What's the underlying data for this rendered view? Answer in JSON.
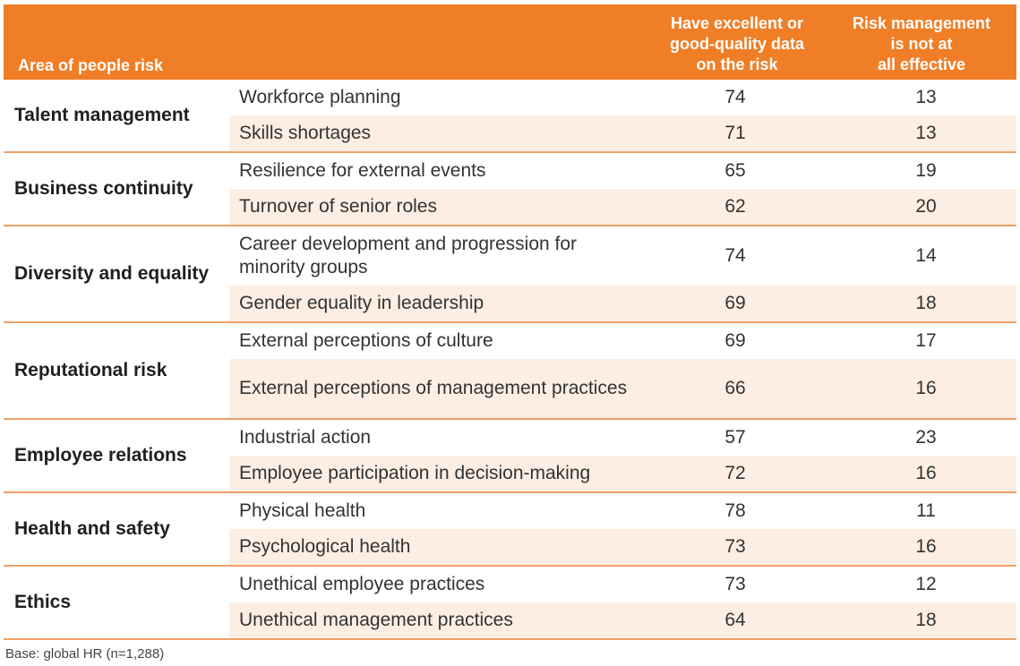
{
  "header": {
    "area": "Area of people risk",
    "col_data": "Have excellent or\ngood-quality data\non the risk",
    "col_risk": "Risk management\nis not at\nall effective"
  },
  "groups": [
    {
      "label": "Talent management",
      "rows": [
        {
          "name": "Workforce planning",
          "data": "74",
          "risk": "13"
        },
        {
          "name": "Skills shortages",
          "data": "71",
          "risk": "13"
        }
      ]
    },
    {
      "label": "Business continuity",
      "rows": [
        {
          "name": "Resilience for external events",
          "data": "65",
          "risk": "19"
        },
        {
          "name": "Turnover of senior roles",
          "data": "62",
          "risk": "20"
        }
      ]
    },
    {
      "label": "Diversity and equality",
      "rows": [
        {
          "name": "Career development and progression for minority groups",
          "data": "74",
          "risk": "14"
        },
        {
          "name": "Gender equality in leadership",
          "data": "69",
          "risk": "18"
        }
      ]
    },
    {
      "label": "Reputational risk",
      "rows": [
        {
          "name": "External perceptions of culture",
          "data": "69",
          "risk": "17"
        },
        {
          "name": "External perceptions of management practices",
          "data": "66",
          "risk": "16"
        }
      ]
    },
    {
      "label": "Employee relations",
      "rows": [
        {
          "name": "Industrial action",
          "data": "57",
          "risk": "23"
        },
        {
          "name": "Employee participation in decision-making",
          "data": "72",
          "risk": "16"
        }
      ]
    },
    {
      "label": "Health and safety",
      "rows": [
        {
          "name": "Physical health",
          "data": "78",
          "risk": "11"
        },
        {
          "name": "Psychological health",
          "data": "73",
          "risk": "16"
        }
      ]
    },
    {
      "label": "Ethics",
      "rows": [
        {
          "name": "Unethical employee practices",
          "data": "73",
          "risk": "12"
        },
        {
          "name": "Unethical management practices",
          "data": "64",
          "risk": "18"
        }
      ]
    }
  ],
  "footer": {
    "base": "Base: global HR (n=1,288)"
  }
}
